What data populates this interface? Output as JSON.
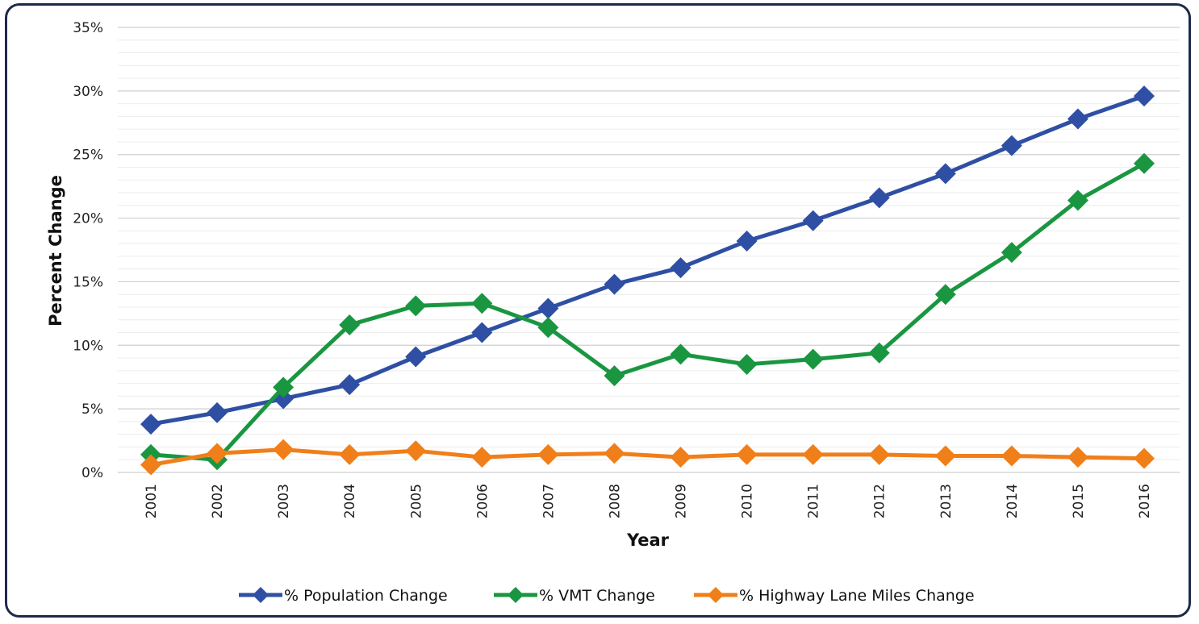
{
  "chart_data": {
    "type": "line",
    "title": "",
    "xlabel": "Year",
    "ylabel": "Percent Change",
    "categories": [
      "2001",
      "2002",
      "2003",
      "2004",
      "2005",
      "2006",
      "2007",
      "2008",
      "2009",
      "2010",
      "2011",
      "2012",
      "2013",
      "2014",
      "2015",
      "2016"
    ],
    "y_ticks": [
      "0%",
      "5%",
      "10%",
      "15%",
      "20%",
      "25%",
      "30%",
      "35%"
    ],
    "ylim": [
      0,
      35
    ],
    "grid": true,
    "minor_grid": true,
    "legend_position": "bottom",
    "series": [
      {
        "name": "% Population Change",
        "color": "#2e4fa3",
        "marker": "diamond",
        "values": [
          3.8,
          4.7,
          5.8,
          6.9,
          9.1,
          11.0,
          12.9,
          14.8,
          16.1,
          18.2,
          19.8,
          21.6,
          23.5,
          25.7,
          27.8,
          29.6
        ]
      },
      {
        "name": "% VMT Change",
        "color": "#1a9641",
        "marker": "diamond",
        "values": [
          1.4,
          1.0,
          6.7,
          11.6,
          13.1,
          13.3,
          11.4,
          7.6,
          9.3,
          8.5,
          8.9,
          9.4,
          14.0,
          17.3,
          21.4,
          24.3
        ]
      },
      {
        "name": "% Highway Lane Miles Change",
        "color": "#f07f1a",
        "marker": "diamond",
        "values": [
          0.6,
          1.5,
          1.8,
          1.4,
          1.7,
          1.2,
          1.4,
          1.5,
          1.2,
          1.4,
          1.4,
          1.4,
          1.3,
          1.3,
          1.2,
          1.1
        ]
      }
    ]
  }
}
